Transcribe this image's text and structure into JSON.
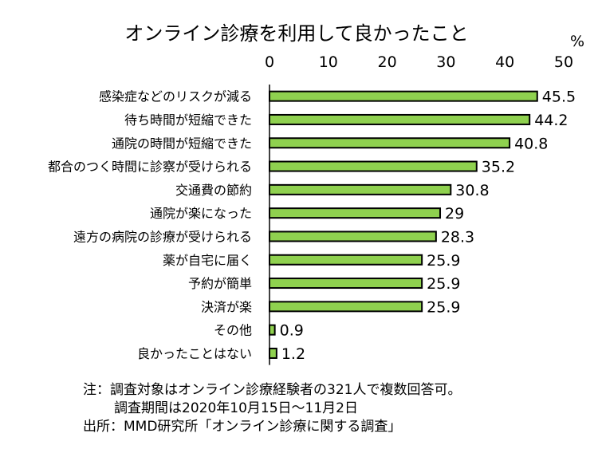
{
  "chart_data": {
    "type": "bar",
    "orientation": "horizontal",
    "title": "オンライン診療を利用して良かったこと",
    "unit": "%",
    "xlim": [
      0,
      50
    ],
    "ticks": [
      "0",
      "10",
      "20",
      "30",
      "40",
      "50"
    ],
    "grid": false,
    "categories": [
      "感染症などのリスクが減る",
      "待ち時間が短縮できた",
      "通院の時間が短縮できた",
      "都合のつく時間に診察が受けられる",
      "交通費の節約",
      "通院が楽になった",
      "遠方の病院の診療が受けられる",
      "薬が自宅に届く",
      "予約が簡単",
      "決済が楽",
      "その他",
      "良かったことはない"
    ],
    "values": [
      45.5,
      44.2,
      40.8,
      35.2,
      30.8,
      29,
      28.3,
      25.9,
      25.9,
      25.9,
      0.9,
      1.2
    ],
    "value_labels": [
      "45.5",
      "44.2",
      "40.8",
      "35.2",
      "30.8",
      "29",
      "28.3",
      "25.9",
      "25.9",
      "25.9",
      "0.9",
      "1.2"
    ],
    "bar_color": "#8fd14f",
    "bar_border_color": "#000000"
  },
  "notes": {
    "line1": "注：調査対象はオンライン診療経験者の321人で複数回答可。",
    "line2": "調査期間は2020年10月15日～11月2日",
    "line3": "出所：MMD研究所「オンライン診療に関する調査」"
  }
}
